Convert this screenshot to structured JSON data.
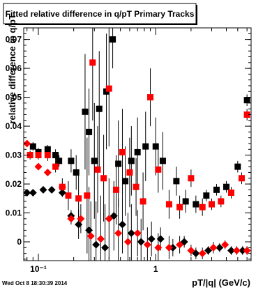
{
  "chart_data": {
    "type": "scatter",
    "title": "Fitted relative difference in q/pT  Primary Tracks",
    "xlabel": "pT/|q| (GeV/c)",
    "ylabel": "relative difference in q/pT",
    "timestamp": "Wed Oct  8 18:30:39 2014",
    "x_scale": "log",
    "xlim": [
      0.075,
      6.5
    ],
    "ylim": [
      -0.0065,
      0.074
    ],
    "x_tick_labels": [
      {
        "value": 0.1,
        "label": "10⁻¹"
      },
      {
        "value": 1,
        "label": "1"
      }
    ],
    "y_ticks": [
      0,
      0.01,
      0.02,
      0.03,
      0.04,
      0.05,
      0.06,
      0.07
    ],
    "y_tick_labels": [
      "0",
      "0.01",
      "0.02",
      "0.03",
      "0.04",
      "0.05",
      "0.06",
      "0.07"
    ],
    "series": [
      {
        "marker": "square",
        "color": "#000000",
        "x": [
          0.09,
          0.1,
          0.12,
          0.14,
          0.15,
          0.19,
          0.21,
          0.25,
          0.27,
          0.3,
          0.33,
          0.38,
          0.43,
          0.48,
          0.55,
          0.62,
          0.7,
          0.82,
          1.0,
          1.15,
          1.5,
          1.8,
          2.2,
          2.7,
          3.3,
          4.0,
          5.0,
          6.0
        ],
        "y": [
          0.033,
          0.031,
          0.032,
          0.03,
          0.028,
          0.028,
          0.024,
          0.045,
          0.038,
          0.028,
          0.046,
          0.052,
          0.07,
          0.027,
          0.021,
          0.028,
          0.031,
          0.033,
          0.033,
          0.028,
          0.021,
          0.014,
          0.013,
          0.016,
          0.018,
          0.019,
          0.026,
          0.049
        ],
        "yerr": [
          0.0015,
          0.0015,
          0.0015,
          0.002,
          0.002,
          0.004,
          0.006,
          0.02,
          0.015,
          0.02,
          0.02,
          0.02,
          0.01,
          0.015,
          0.012,
          0.012,
          0.012,
          0.012,
          0.01,
          0.01,
          0.005,
          0.004,
          0.003,
          0.002,
          0.002,
          0.002,
          0.002,
          0.002
        ]
      },
      {
        "marker": "square",
        "color": "#ff0000",
        "x": [
          0.085,
          0.1,
          0.12,
          0.14,
          0.16,
          0.18,
          0.22,
          0.26,
          0.29,
          0.32,
          0.36,
          0.4,
          0.46,
          0.52,
          0.6,
          0.68,
          0.78,
          0.9,
          1.05,
          1.3,
          1.6,
          2.0,
          2.5,
          3.0,
          3.6,
          4.4,
          5.4,
          6.0
        ],
        "y": [
          0.03,
          0.03,
          0.03,
          0.026,
          0.019,
          0.016,
          0.015,
          0.016,
          0.062,
          0.025,
          0.022,
          0.053,
          0.018,
          0.031,
          0.024,
          0.019,
          0.014,
          0.05,
          0.025,
          0.013,
          0.012,
          0.022,
          0.012,
          0.013,
          0.014,
          0.017,
          0.022,
          0.044
        ],
        "yerr": [
          0.0015,
          0.0015,
          0.002,
          0.002,
          0.003,
          0.005,
          0.008,
          0.02,
          0.02,
          0.015,
          0.015,
          0.02,
          0.012,
          0.015,
          0.012,
          0.01,
          0.01,
          0.01,
          0.008,
          0.005,
          0.004,
          0.003,
          0.003,
          0.002,
          0.002,
          0.002,
          0.002,
          0.002
        ]
      },
      {
        "marker": "diamond",
        "color": "#000000",
        "x": [
          0.08,
          0.09,
          0.11,
          0.13,
          0.16,
          0.19,
          0.22,
          0.27,
          0.31,
          0.37,
          0.44,
          0.52,
          0.62,
          0.75,
          0.92,
          1.1,
          1.4,
          1.75,
          2.2,
          2.8,
          3.5,
          4.4,
          5.5
        ],
        "y": [
          0.017,
          0.017,
          0.018,
          0.018,
          0.017,
          0.009,
          0.006,
          0.004,
          -0.001,
          -0.002,
          0.009,
          0.006,
          0.003,
          0.0,
          0.001,
          0.001,
          -0.002,
          0.0,
          -0.004,
          -0.003,
          -0.002,
          -0.003,
          -0.003
        ],
        "yerr": [
          0.0008,
          0.0008,
          0.001,
          0.001,
          0.0015,
          0.002,
          0.005,
          0.015,
          0.015,
          0.015,
          0.012,
          0.01,
          0.01,
          0.008,
          0.006,
          0.004,
          0.003,
          0.002,
          0.002,
          0.0015,
          0.0015,
          0.0015,
          0.0015
        ]
      },
      {
        "marker": "diamond",
        "color": "#ff0000",
        "x": [
          0.08,
          0.1,
          0.12,
          0.16,
          0.19,
          0.23,
          0.28,
          0.34,
          0.4,
          0.48,
          0.58,
          0.7,
          0.85,
          1.05,
          1.3,
          1.6,
          2.0,
          2.5,
          3.1,
          3.9,
          4.9,
          6.0
        ],
        "y": [
          0.034,
          0.026,
          0.024,
          0.019,
          0.008,
          0.008,
          0.002,
          0.001,
          0.008,
          0.003,
          0.0,
          0.003,
          -0.001,
          -0.002,
          -0.002,
          -0.001,
          -0.003,
          -0.004,
          -0.002,
          -0.001,
          -0.003,
          -0.003
        ],
        "yerr": [
          0.0008,
          0.0009,
          0.001,
          0.0015,
          0.002,
          0.005,
          0.012,
          0.015,
          0.014,
          0.012,
          0.01,
          0.008,
          0.006,
          0.005,
          0.004,
          0.003,
          0.002,
          0.002,
          0.002,
          0.0015,
          0.0015,
          0.0015
        ]
      }
    ]
  }
}
